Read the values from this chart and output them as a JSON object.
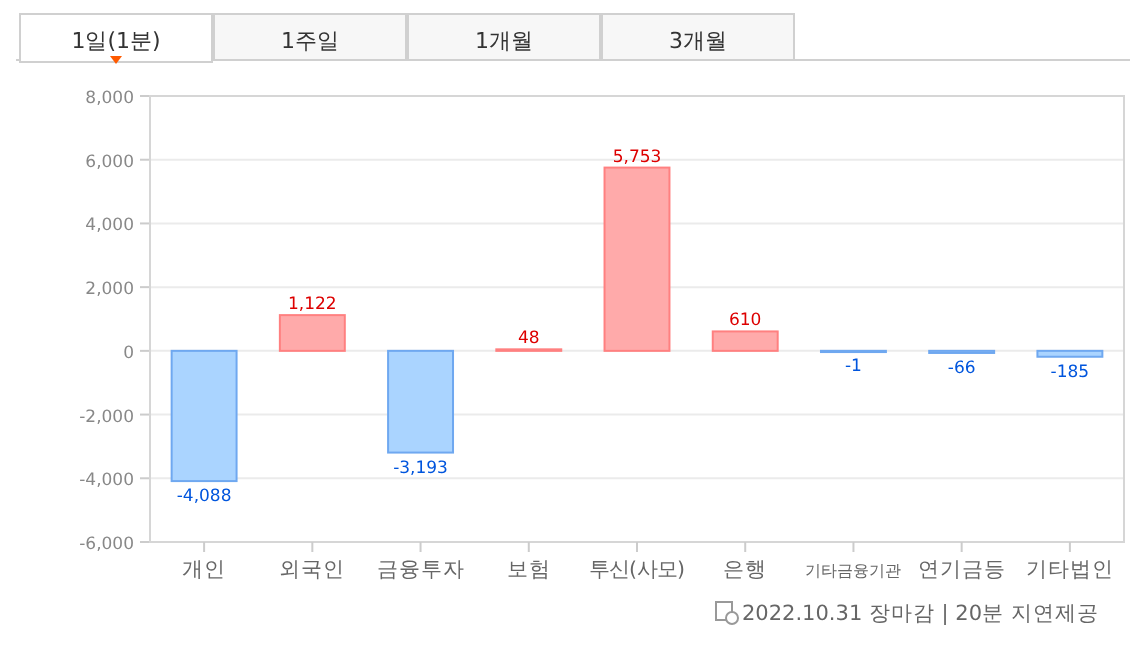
{
  "chart_data": {
    "type": "bar",
    "categories": [
      "개인",
      "외국인",
      "금융투자",
      "보험",
      "투신(사모)",
      "은행",
      "기타금융기관",
      "연기금등",
      "기타법인"
    ],
    "values": [
      -4088,
      1122,
      -3193,
      48,
      5753,
      610,
      -1,
      -66,
      -185
    ],
    "value_labels": [
      "-4,088",
      "1,122",
      "-3,193",
      "48",
      "5,753",
      "610",
      "-1",
      "-66",
      "-185"
    ],
    "colors": [
      "#aad4ff",
      "#ffaaaa",
      "#aad4ff",
      "#ffaaaa",
      "#ffaaaa",
      "#ffaaaa",
      "#aad4ff",
      "#aad4ff",
      "#aad4ff"
    ],
    "ylim": [
      -6000,
      8000
    ],
    "yticks": [
      {
        "value": -6000,
        "label": "-6,000"
      },
      {
        "value": -4000,
        "label": "-4,000"
      },
      {
        "value": -2000,
        "label": "-2,000"
      },
      0,
      {
        "value": 2000,
        "label": "2,000"
      },
      {
        "value": 4000,
        "label": "4,000"
      },
      {
        "value": 6000,
        "label": "6,000"
      },
      {
        "value": 8000,
        "label": "8,000"
      }
    ],
    "grid": "y",
    "annotations": [
      "1일(1분)",
      "1주일",
      "1개월",
      "3개월",
      "2022.10.31 장마감 | 20분 지연제공"
    ]
  }
}
